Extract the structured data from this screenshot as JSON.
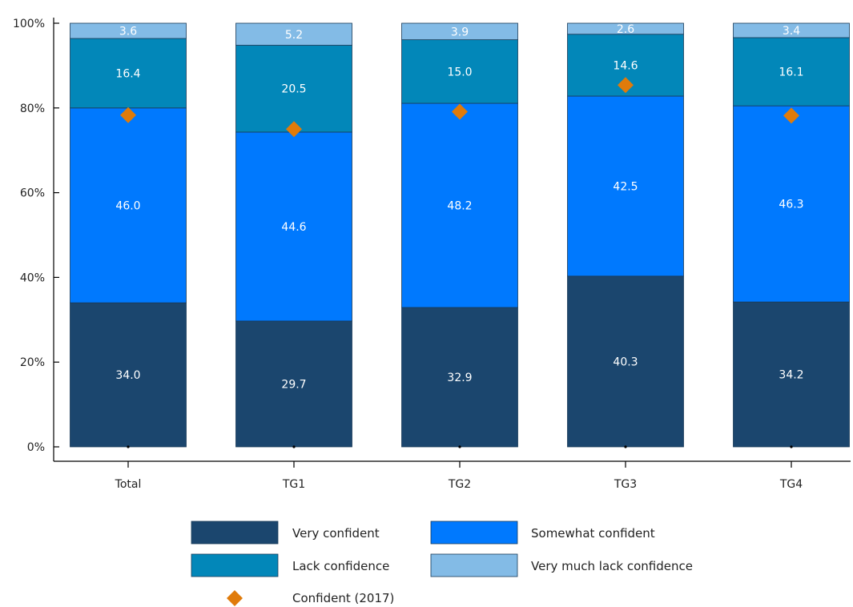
{
  "chart_data": {
    "type": "bar",
    "stacked": true,
    "categories": [
      "Total",
      "TG1",
      "TG2",
      "TG3",
      "TG4"
    ],
    "ylim": [
      0,
      100
    ],
    "yticks": [
      "0%",
      "20%",
      "40%",
      "60%",
      "80%",
      "100%"
    ],
    "series": [
      {
        "name": "Very confident",
        "color": "#1b466e",
        "values": [
          34.0,
          29.7,
          32.9,
          40.3,
          34.2
        ]
      },
      {
        "name": "Somewhat confident",
        "color": "#0079fe",
        "values": [
          46.0,
          44.6,
          48.2,
          42.5,
          46.3
        ]
      },
      {
        "name": "Lack confidence",
        "color": "#0287b9",
        "values": [
          16.4,
          20.5,
          15.0,
          14.6,
          16.1
        ]
      },
      {
        "name": "Very much lack confidence",
        "color": "#83bbe6",
        "values": [
          3.6,
          5.2,
          3.9,
          2.6,
          3.4
        ]
      }
    ],
    "markers": {
      "name": "Confident (2017)",
      "color": "#e07b0a",
      "shape": "diamond",
      "values": [
        78.3,
        75.0,
        79.1,
        85.4,
        78.2
      ]
    },
    "legend_position": "bottom",
    "grid": false
  }
}
